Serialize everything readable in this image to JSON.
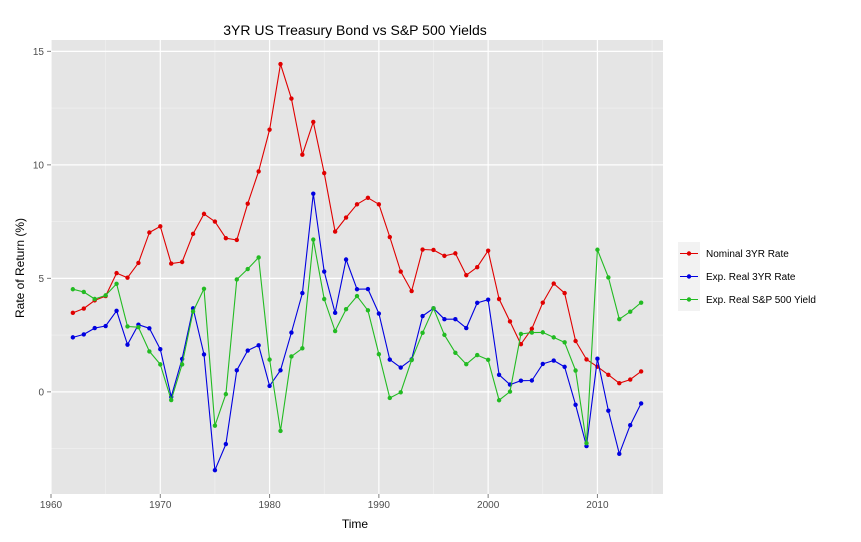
{
  "chart_data": {
    "type": "line",
    "title": "3YR US Treasury Bond vs S&P 500 Yields",
    "xlabel": "Time",
    "ylabel": "Rate of Return (%)",
    "xlim": [
      1960,
      2016
    ],
    "ylim": [
      -4.5,
      15.5
    ],
    "xticks": [
      1960,
      1970,
      1980,
      1990,
      2000,
      2010
    ],
    "yticks": [
      0,
      5,
      10,
      15
    ],
    "x": [
      1962,
      1963,
      1964,
      1965,
      1966,
      1967,
      1968,
      1969,
      1970,
      1971,
      1972,
      1973,
      1974,
      1975,
      1976,
      1977,
      1978,
      1979,
      1980,
      1981,
      1982,
      1983,
      1984,
      1985,
      1986,
      1987,
      1988,
      1989,
      1990,
      1991,
      1992,
      1993,
      1994,
      1995,
      1996,
      1997,
      1998,
      1999,
      2000,
      2001,
      2002,
      2003,
      2004,
      2005,
      2006,
      2007,
      2008,
      2009,
      2010,
      2011,
      2012,
      2013,
      2014
    ],
    "series": [
      {
        "name": "Nominal 3YR Rate",
        "color": "#e00000",
        "values": [
          3.48,
          3.67,
          4.03,
          4.22,
          5.23,
          5.03,
          5.68,
          7.02,
          7.29,
          5.65,
          5.72,
          6.96,
          7.84,
          7.5,
          6.77,
          6.69,
          8.29,
          9.71,
          11.55,
          14.44,
          12.92,
          10.45,
          11.89,
          9.64,
          7.06,
          7.68,
          8.26,
          8.55,
          8.26,
          6.82,
          5.3,
          4.44,
          6.27,
          6.25,
          5.99,
          6.1,
          5.14,
          5.49,
          6.22,
          4.09,
          3.1,
          2.1,
          2.78,
          3.93,
          4.77,
          4.35,
          2.24,
          1.43,
          1.11,
          0.75,
          0.38,
          0.54,
          0.9
        ]
      },
      {
        "name": "Exp. Real 3YR Rate",
        "color": "#0000e0",
        "values": [
          2.4,
          2.53,
          2.81,
          2.9,
          3.57,
          2.08,
          2.96,
          2.8,
          1.88,
          -0.22,
          1.45,
          3.68,
          1.65,
          -3.45,
          -2.3,
          0.95,
          1.82,
          2.05,
          0.26,
          0.95,
          2.61,
          4.35,
          8.73,
          5.3,
          3.48,
          5.83,
          4.52,
          4.53,
          3.45,
          1.42,
          1.07,
          1.43,
          3.34,
          3.68,
          3.2,
          3.2,
          2.81,
          3.92,
          4.06,
          0.75,
          0.32,
          0.49,
          0.5,
          1.23,
          1.38,
          1.1,
          -0.57,
          -2.39,
          1.46,
          -0.83,
          -2.73,
          -1.47,
          -0.51
        ]
      },
      {
        "name": "Exp. Real S&P 500 Yield",
        "color": "#22bb22",
        "values": [
          4.52,
          4.4,
          4.09,
          4.25,
          4.76,
          2.88,
          2.85,
          1.78,
          1.21,
          -0.36,
          1.21,
          3.54,
          4.54,
          -1.49,
          -0.1,
          4.95,
          5.41,
          5.92,
          1.42,
          -1.72,
          1.56,
          1.92,
          6.71,
          4.09,
          2.68,
          3.64,
          4.22,
          3.59,
          1.66,
          -0.27,
          -0.02,
          1.4,
          2.6,
          3.68,
          2.51,
          1.72,
          1.22,
          1.62,
          1.41,
          -0.37,
          0.01,
          2.55,
          2.61,
          2.62,
          2.4,
          2.18,
          0.94,
          -2.26,
          6.26,
          5.04,
          3.2,
          3.53,
          3.93
        ]
      }
    ],
    "grid": true,
    "legend_position": "right"
  }
}
